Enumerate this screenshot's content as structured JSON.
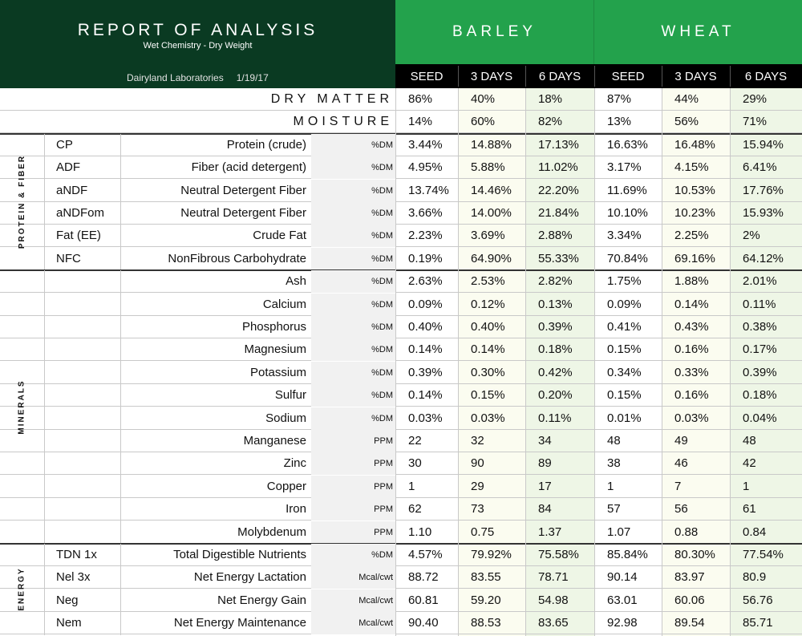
{
  "header": {
    "title": "REPORT OF ANALYSIS",
    "subtitle": "Wet Chemistry - Dry Weight",
    "lab": "Dairyland Laboratories",
    "date": "1/19/17"
  },
  "crops": [
    {
      "name": "BARLEY",
      "columns": [
        "SEED",
        "3 DAYS",
        "6 DAYS"
      ]
    },
    {
      "name": "WHEAT",
      "columns": [
        "SEED",
        "3 DAYS",
        "6 DAYS"
      ]
    }
  ],
  "summary_rows": [
    {
      "label": "DRY MATTER",
      "values": [
        "86%",
        "40%",
        "18%",
        "87%",
        "44%",
        "29%"
      ]
    },
    {
      "label": "MOISTURE",
      "values": [
        "14%",
        "60%",
        "82%",
        "13%",
        "56%",
        "71%"
      ]
    }
  ],
  "sections": [
    {
      "name": "PROTEIN & FIBER",
      "rows": [
        {
          "abbr": "CP",
          "desc": "Protein (crude)",
          "unit": "%DM",
          "values": [
            "3.44%",
            "14.88%",
            "17.13%",
            "16.63%",
            "16.48%",
            "15.94%"
          ]
        },
        {
          "abbr": "ADF",
          "desc": "Fiber (acid detergent)",
          "unit": "%DM",
          "values": [
            "4.95%",
            "5.88%",
            "11.02%",
            "3.17%",
            "4.15%",
            "6.41%"
          ]
        },
        {
          "abbr": "aNDF",
          "desc": "Neutral Detergent Fiber",
          "unit": "%DM",
          "values": [
            "13.74%",
            "14.46%",
            "22.20%",
            "11.69%",
            "10.53%",
            "17.76%"
          ]
        },
        {
          "abbr": "aNDFom",
          "desc": "Neutral Detergent Fiber",
          "unit": "%DM",
          "values": [
            "3.66%",
            "14.00%",
            "21.84%",
            "10.10%",
            "10.23%",
            "15.93%"
          ]
        },
        {
          "abbr": "Fat (EE)",
          "desc": "Crude Fat",
          "unit": "%DM",
          "values": [
            "2.23%",
            "3.69%",
            "2.88%",
            "3.34%",
            "2.25%",
            "2%"
          ]
        },
        {
          "abbr": "NFC",
          "desc": "NonFibrous Carbohydrate",
          "unit": "%DM",
          "values": [
            "0.19%",
            "64.90%",
            "55.33%",
            "70.84%",
            "69.16%",
            "64.12%"
          ]
        }
      ]
    },
    {
      "name": "MINERALS",
      "rows": [
        {
          "abbr": "",
          "desc": "Ash",
          "unit": "%DM",
          "values": [
            "2.63%",
            "2.53%",
            "2.82%",
            "1.75%",
            "1.88%",
            "2.01%"
          ]
        },
        {
          "abbr": "",
          "desc": "Calcium",
          "unit": "%DM",
          "values": [
            "0.09%",
            "0.12%",
            "0.13%",
            "0.09%",
            "0.14%",
            "0.11%"
          ]
        },
        {
          "abbr": "",
          "desc": "Phosphorus",
          "unit": "%DM",
          "values": [
            "0.40%",
            "0.40%",
            "0.39%",
            "0.41%",
            "0.43%",
            "0.38%"
          ]
        },
        {
          "abbr": "",
          "desc": "Magnesium",
          "unit": "%DM",
          "values": [
            "0.14%",
            "0.14%",
            "0.18%",
            "0.15%",
            "0.16%",
            "0.17%"
          ]
        },
        {
          "abbr": "",
          "desc": "Potassium",
          "unit": "%DM",
          "values": [
            "0.39%",
            "0.30%",
            "0.42%",
            "0.34%",
            "0.33%",
            "0.39%"
          ]
        },
        {
          "abbr": "",
          "desc": "Sulfur",
          "unit": "%DM",
          "values": [
            "0.14%",
            "0.15%",
            "0.20%",
            "0.15%",
            "0.16%",
            "0.18%"
          ]
        },
        {
          "abbr": "",
          "desc": "Sodium",
          "unit": "%DM",
          "values": [
            "0.03%",
            "0.03%",
            "0.11%",
            "0.01%",
            "0.03%",
            "0.04%"
          ]
        },
        {
          "abbr": "",
          "desc": "Manganese",
          "unit": "PPM",
          "values": [
            "22",
            "32",
            "34",
            "48",
            "49",
            "48"
          ]
        },
        {
          "abbr": "",
          "desc": "Zinc",
          "unit": "PPM",
          "values": [
            "30",
            "90",
            "89",
            "38",
            "46",
            "42"
          ]
        },
        {
          "abbr": "",
          "desc": "Copper",
          "unit": "PPM",
          "values": [
            "1",
            "29",
            "17",
            "1",
            "7",
            "1"
          ]
        },
        {
          "abbr": "",
          "desc": "Iron",
          "unit": "PPM",
          "values": [
            "62",
            "73",
            "84",
            "57",
            "56",
            "61"
          ]
        },
        {
          "abbr": "",
          "desc": "Molybdenum",
          "unit": "PPM",
          "values": [
            "1.10",
            "0.75",
            "1.37",
            "1.07",
            "0.88",
            "0.84"
          ]
        }
      ]
    },
    {
      "name": "ENERGY",
      "rows": [
        {
          "abbr": "TDN 1x",
          "desc": "Total Digestible Nutrients",
          "unit": "%DM",
          "values": [
            "4.57%",
            "79.92%",
            "75.58%",
            "85.84%",
            "80.30%",
            "77.54%"
          ]
        },
        {
          "abbr": "Nel 3x",
          "desc": "Net Energy Lactation",
          "unit": "Mcal/cwt",
          "values": [
            "88.72",
            "83.55",
            "78.71",
            "90.14",
            "83.97",
            "80.9"
          ]
        },
        {
          "abbr": "Neg",
          "desc": "Net Energy Gain",
          "unit": "Mcal/cwt",
          "values": [
            "60.81",
            "59.20",
            "54.98",
            "63.01",
            "60.06",
            "56.76"
          ]
        },
        {
          "abbr": "Nem",
          "desc": "Net Energy Maintenance",
          "unit": "Mcal/cwt",
          "values": [
            "90.40",
            "88.53",
            "83.65",
            "92.98",
            "89.54",
            "85.71"
          ]
        }
      ]
    }
  ],
  "colors": {
    "header_dark": "#0a3a22",
    "header_green": "#23a24c",
    "col_3day_tint": "#fbfcf0",
    "col_6day_tint": "#eef6e6"
  }
}
